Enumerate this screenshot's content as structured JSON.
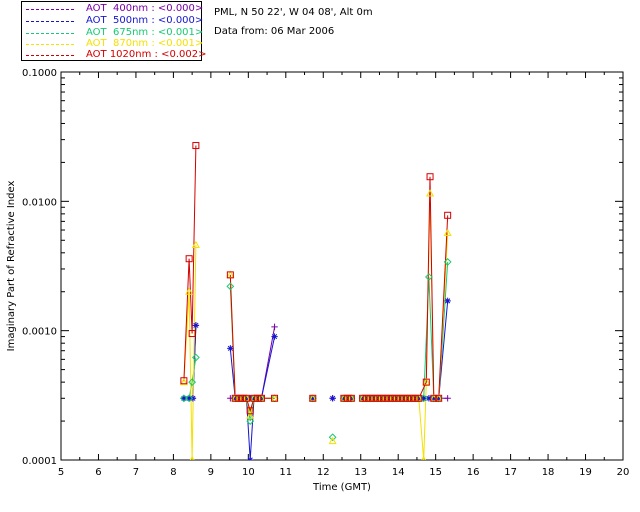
{
  "legend": [
    {
      "label": "AOT  400nm : <0.000>",
      "color": "#7a00a8"
    },
    {
      "label": "AOT  500nm : <0.000>",
      "color": "#1515d0"
    },
    {
      "label": "AOT  675nm : <0.001>",
      "color": "#18c873"
    },
    {
      "label": "AOT  870nm : <0.001>",
      "color": "#f4e100"
    },
    {
      "label": "AOT 1020nm : <0.002>",
      "color": "#d40000"
    }
  ],
  "site_line": "PML, N 50 22', W 04 08', Alt 0m",
  "date_line": "Data from: 06 Mar 2006",
  "chart_data": {
    "type": "line",
    "ylabel": "Imaginary Part of Refractive Index",
    "xlabel": "Time (GMT)",
    "xlim": [
      5,
      20
    ],
    "ylim": [
      0.0001,
      0.1
    ],
    "yscale": "log",
    "xticks": [
      "5",
      "6",
      "7",
      "8",
      "9",
      "10",
      "11",
      "12",
      "13",
      "14",
      "15",
      "16",
      "17",
      "18",
      "19",
      "20"
    ],
    "yticks": [
      {
        "value": 0.1,
        "label": "0.1000"
      },
      {
        "value": 0.01,
        "label": "0.0100"
      },
      {
        "value": 0.001,
        "label": "0.0010"
      },
      {
        "value": 0.0001,
        "label": "0.0001"
      }
    ],
    "series": [
      {
        "name": "AOT 400nm",
        "color": "#7a00a8",
        "marker": "plus",
        "segments": [
          [
            [
              8.28,
              0.0003
            ],
            [
              8.42,
              0.0003
            ],
            [
              8.52,
              0.0003
            ],
            [
              8.6,
              0.0011
            ]
          ],
          [
            [
              9.52,
              0.0003
            ],
            [
              9.65,
              0.0003
            ],
            [
              9.75,
              0.0003
            ],
            [
              9.85,
              0.0003
            ],
            [
              9.95,
              0.0003
            ],
            [
              10.05,
              0.0003
            ],
            [
              10.15,
              0.0003
            ],
            [
              10.25,
              0.0003
            ],
            [
              10.35,
              0.0003
            ],
            [
              10.7,
              0.00107
            ]
          ],
          [
            [
              11.72,
              0.0003
            ]
          ],
          [
            [
              12.25,
              0.0003
            ]
          ],
          [
            [
              12.55,
              0.0003
            ],
            [
              12.65,
              0.0003
            ],
            [
              12.75,
              0.0003
            ]
          ],
          [
            [
              13.05,
              0.0003
            ],
            [
              13.15,
              0.0003
            ],
            [
              13.25,
              0.0003
            ],
            [
              13.35,
              0.0003
            ],
            [
              13.45,
              0.0003
            ],
            [
              13.55,
              0.0003
            ],
            [
              13.65,
              0.0003
            ],
            [
              13.75,
              0.0003
            ],
            [
              13.85,
              0.0003
            ],
            [
              13.95,
              0.0003
            ],
            [
              14.05,
              0.0003
            ],
            [
              14.15,
              0.0003
            ],
            [
              14.25,
              0.0003
            ],
            [
              14.35,
              0.0003
            ],
            [
              14.45,
              0.0003
            ],
            [
              14.55,
              0.0003
            ],
            [
              14.68,
              0.0003
            ],
            [
              14.82,
              0.0003
            ],
            [
              14.95,
              0.0003
            ],
            [
              15.08,
              0.0003
            ],
            [
              15.32,
              0.0003
            ]
          ]
        ]
      },
      {
        "name": "AOT 500nm",
        "color": "#1515d0",
        "marker": "star",
        "segments": [
          [
            [
              8.28,
              0.0003
            ],
            [
              8.42,
              0.0003
            ],
            [
              8.52,
              0.0003
            ],
            [
              8.6,
              0.0011
            ]
          ],
          [
            [
              9.52,
              0.00073
            ],
            [
              9.65,
              0.0003
            ],
            [
              9.75,
              0.0003
            ],
            [
              9.85,
              0.0003
            ],
            [
              9.95,
              0.0003
            ],
            [
              10.05,
              0.0001
            ],
            [
              10.15,
              0.0003
            ],
            [
              10.25,
              0.0003
            ],
            [
              10.35,
              0.0003
            ],
            [
              10.7,
              0.0009
            ]
          ],
          [
            [
              11.72,
              0.0003
            ]
          ],
          [
            [
              12.25,
              0.0003
            ]
          ],
          [
            [
              12.55,
              0.0003
            ],
            [
              12.65,
              0.0003
            ],
            [
              12.75,
              0.0003
            ]
          ],
          [
            [
              13.05,
              0.0003
            ],
            [
              13.15,
              0.0003
            ],
            [
              13.25,
              0.0003
            ],
            [
              13.35,
              0.0003
            ],
            [
              13.45,
              0.0003
            ],
            [
              13.55,
              0.0003
            ],
            [
              13.65,
              0.0003
            ],
            [
              13.75,
              0.0003
            ],
            [
              13.85,
              0.0003
            ],
            [
              13.95,
              0.0003
            ],
            [
              14.05,
              0.0003
            ],
            [
              14.15,
              0.0003
            ],
            [
              14.25,
              0.0003
            ],
            [
              14.35,
              0.0003
            ],
            [
              14.45,
              0.0003
            ],
            [
              14.55,
              0.0003
            ],
            [
              14.68,
              0.0003
            ],
            [
              14.82,
              0.0003
            ],
            [
              14.95,
              0.0003
            ],
            [
              15.08,
              0.0003
            ],
            [
              15.32,
              0.0017
            ]
          ]
        ]
      },
      {
        "name": "AOT 675nm",
        "color": "#18c873",
        "marker": "diamond",
        "segments": [
          [
            [
              8.28,
              0.0003
            ],
            [
              8.42,
              0.0003
            ],
            [
              8.5,
              0.0004
            ],
            [
              8.6,
              0.00062
            ]
          ],
          [
            [
              9.52,
              0.0022
            ],
            [
              9.65,
              0.0003
            ],
            [
              9.75,
              0.0003
            ],
            [
              9.85,
              0.0003
            ],
            [
              9.95,
              0.0003
            ],
            [
              10.05,
              0.0002
            ],
            [
              10.15,
              0.0003
            ],
            [
              10.25,
              0.0003
            ],
            [
              10.35,
              0.0003
            ],
            [
              10.7,
              0.0003
            ]
          ],
          [
            [
              11.72,
              0.0003
            ]
          ],
          [
            [
              12.25,
              0.00015
            ]
          ],
          [
            [
              12.55,
              0.0003
            ],
            [
              12.65,
              0.0003
            ],
            [
              12.75,
              0.0003
            ]
          ],
          [
            [
              13.05,
              0.0003
            ],
            [
              13.15,
              0.0003
            ],
            [
              13.25,
              0.0003
            ],
            [
              13.35,
              0.0003
            ],
            [
              13.45,
              0.0003
            ],
            [
              13.55,
              0.0003
            ],
            [
              13.65,
              0.0003
            ],
            [
              13.75,
              0.0003
            ],
            [
              13.85,
              0.0003
            ],
            [
              13.95,
              0.0003
            ],
            [
              14.05,
              0.0003
            ],
            [
              14.15,
              0.0003
            ],
            [
              14.25,
              0.0003
            ],
            [
              14.35,
              0.0003
            ],
            [
              14.45,
              0.0003
            ],
            [
              14.55,
              0.0003
            ],
            [
              14.68,
              0.0003
            ],
            [
              14.82,
              0.0026
            ],
            [
              14.95,
              0.0003
            ],
            [
              15.08,
              0.0003
            ],
            [
              15.32,
              0.0034
            ]
          ]
        ]
      },
      {
        "name": "AOT 870nm",
        "color": "#f4e100",
        "marker": "triangle",
        "segments": [
          [
            [
              8.28,
              0.0004
            ],
            [
              8.42,
              0.002
            ],
            [
              8.5,
              0.0001
            ],
            [
              8.6,
              0.0046
            ]
          ],
          [
            [
              9.52,
              0.0027
            ],
            [
              9.65,
              0.0003
            ],
            [
              9.75,
              0.0003
            ],
            [
              9.85,
              0.0003
            ],
            [
              9.95,
              0.0003
            ],
            [
              10.05,
              0.00022
            ],
            [
              10.15,
              0.0003
            ],
            [
              10.25,
              0.0003
            ],
            [
              10.35,
              0.0003
            ],
            [
              10.7,
              0.0003
            ]
          ],
          [
            [
              11.72,
              0.0003
            ]
          ],
          [
            [
              12.25,
              0.00014
            ]
          ],
          [
            [
              12.55,
              0.0003
            ],
            [
              12.65,
              0.0003
            ],
            [
              12.75,
              0.0003
            ]
          ],
          [
            [
              13.05,
              0.0003
            ],
            [
              13.15,
              0.0003
            ],
            [
              13.25,
              0.0003
            ],
            [
              13.35,
              0.0003
            ],
            [
              13.45,
              0.0003
            ],
            [
              13.55,
              0.0003
            ],
            [
              13.65,
              0.0003
            ],
            [
              13.75,
              0.0003
            ],
            [
              13.85,
              0.0003
            ],
            [
              13.95,
              0.0003
            ],
            [
              14.05,
              0.0003
            ],
            [
              14.15,
              0.0003
            ],
            [
              14.25,
              0.0003
            ],
            [
              14.35,
              0.0003
            ],
            [
              14.45,
              0.0003
            ],
            [
              14.55,
              0.0003
            ],
            [
              14.68,
              0.0001
            ],
            [
              14.75,
              0.0004
            ],
            [
              14.85,
              0.0115
            ],
            [
              14.95,
              0.0003
            ],
            [
              15.08,
              0.0003
            ],
            [
              15.32,
              0.0057
            ]
          ]
        ]
      },
      {
        "name": "AOT 1020nm",
        "color": "#d40000",
        "marker": "square",
        "segments": [
          [
            [
              8.28,
              0.00041
            ],
            [
              8.42,
              0.0036
            ],
            [
              8.5,
              0.00095
            ],
            [
              8.6,
              0.027
            ]
          ],
          [
            [
              9.52,
              0.0027
            ],
            [
              9.65,
              0.0003
            ],
            [
              9.75,
              0.0003
            ],
            [
              9.85,
              0.0003
            ],
            [
              9.95,
              0.0003
            ],
            [
              10.05,
              0.00024
            ],
            [
              10.15,
              0.0003
            ],
            [
              10.25,
              0.0003
            ],
            [
              10.35,
              0.0003
            ],
            [
              10.7,
              0.0003
            ]
          ],
          [
            [
              11.72,
              0.0003
            ]
          ],
          [
            [
              12.55,
              0.0003
            ],
            [
              12.65,
              0.0003
            ],
            [
              12.75,
              0.0003
            ]
          ],
          [
            [
              13.05,
              0.0003
            ],
            [
              13.15,
              0.0003
            ],
            [
              13.25,
              0.0003
            ],
            [
              13.35,
              0.0003
            ],
            [
              13.45,
              0.0003
            ],
            [
              13.55,
              0.0003
            ],
            [
              13.65,
              0.0003
            ],
            [
              13.75,
              0.0003
            ],
            [
              13.85,
              0.0003
            ],
            [
              13.95,
              0.0003
            ],
            [
              14.05,
              0.0003
            ],
            [
              14.15,
              0.0003
            ],
            [
              14.25,
              0.0003
            ],
            [
              14.35,
              0.0003
            ],
            [
              14.45,
              0.0003
            ],
            [
              14.55,
              0.0003
            ],
            [
              14.75,
              0.0004
            ],
            [
              14.85,
              0.0155
            ],
            [
              14.95,
              0.0003
            ],
            [
              15.08,
              0.0003
            ],
            [
              15.32,
              0.0078
            ]
          ]
        ]
      }
    ]
  }
}
